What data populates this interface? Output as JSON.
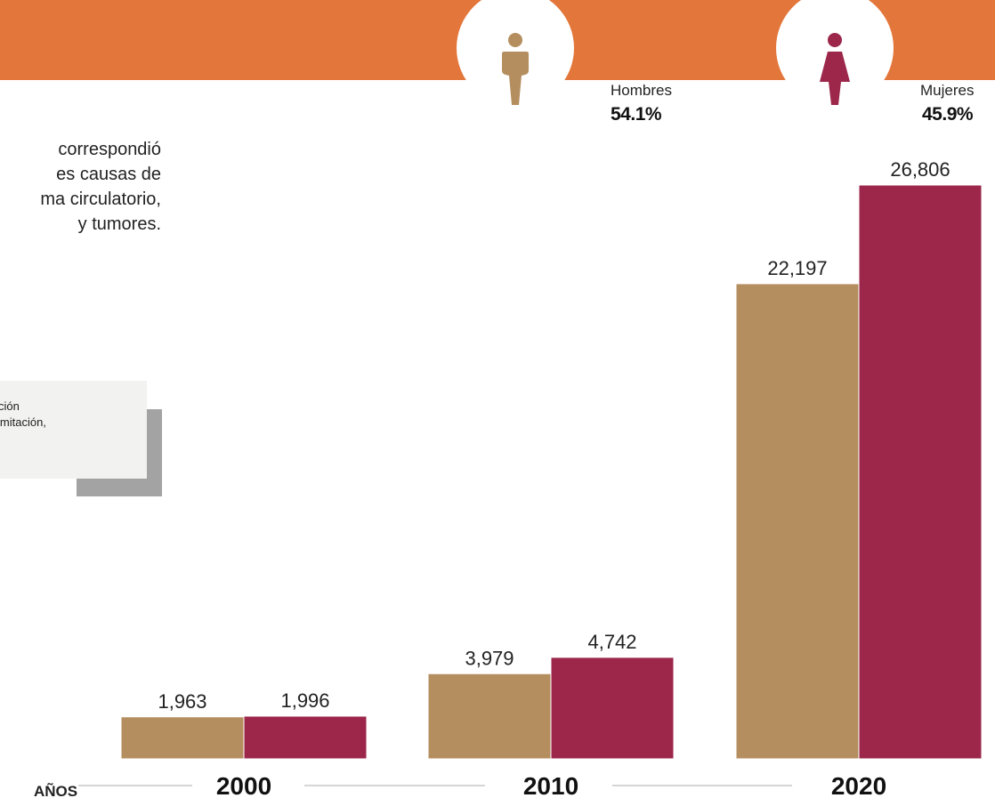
{
  "colors": {
    "banner": "#e3763a",
    "men": "#b58e5f",
    "women": "#9c274b",
    "axis_line": "#c8c8c8",
    "note_bg": "#f2f2f0",
    "note_shadow": "#a3a3a3"
  },
  "legend": {
    "men": {
      "icon": "man-icon",
      "label": "Hombres",
      "percent": "54.1%"
    },
    "women": {
      "icon": "woman-icon",
      "label": "Mujeres",
      "percent": "45.9%"
    }
  },
  "intro": {
    "lines": [
      "correspondió",
      "es causas de",
      "ma circulatorio,",
      "y tumores."
    ]
  },
  "note": {
    "lines": [
      "ción",
      "imitación,"
    ]
  },
  "chart_data": {
    "type": "bar",
    "categories": [
      "2000",
      "2010",
      "2020"
    ],
    "xlabel": "AÑOS",
    "ylabel": "",
    "series": [
      {
        "name": "Hombres",
        "values": [
          1963,
          3979,
          22197
        ],
        "labels": [
          "1,963",
          "3,979",
          "22,197"
        ]
      },
      {
        "name": "Mujeres",
        "values": [
          1996,
          4742,
          26806
        ],
        "labels": [
          "1,996",
          "4,742",
          "26,806"
        ]
      }
    ],
    "ylim": [
      0,
      26806
    ],
    "grid": false,
    "legend_position": "top-right"
  }
}
